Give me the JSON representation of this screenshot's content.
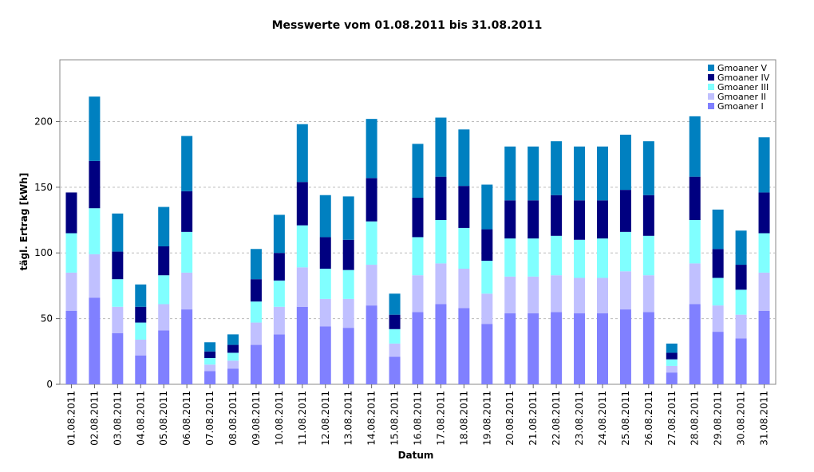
{
  "chart_data": {
    "type": "stacked_bar",
    "title": "Messwerte vom 01.08.2011 bis 31.08.2011",
    "x_label": "Datum",
    "y_label": "tägl. Ertrag [kWh]",
    "categories": [
      "01.08.2011",
      "02.08.2011",
      "03.08.2011",
      "04.08.2011",
      "05.08.2011",
      "06.08.2011",
      "07.08.2011",
      "08.08.2011",
      "09.08.2011",
      "10.08.2011",
      "11.08.2011",
      "12.08.2011",
      "13.08.2011",
      "14.08.2011",
      "15.08.2011",
      "16.08.2011",
      "17.08.2011",
      "18.08.2011",
      "19.08.2011",
      "20.08.2011",
      "21.08.2011",
      "22.08.2011",
      "23.08.2011",
      "24.08.2011",
      "25.08.2011",
      "26.08.2011",
      "27.08.2011",
      "28.08.2011",
      "29.08.2011",
      "30.08.2011",
      "31.08.2011"
    ],
    "series": [
      {
        "name": "Gmoaner I",
        "color": "#8080ff",
        "values": [
          56,
          66,
          39,
          22,
          41,
          57,
          10,
          12,
          30,
          38,
          59,
          44,
          43,
          60,
          21,
          55,
          61,
          58,
          46,
          54,
          54,
          55,
          54,
          54,
          57,
          55,
          9,
          61,
          40,
          35,
          56
        ]
      },
      {
        "name": "Gmoaner II",
        "color": "#c0c0ff",
        "values": [
          29,
          33,
          20,
          12,
          20,
          28,
          5,
          6,
          17,
          21,
          30,
          21,
          22,
          31,
          10,
          28,
          31,
          30,
          23,
          28,
          28,
          28,
          27,
          27,
          29,
          28,
          5,
          31,
          20,
          18,
          29
        ]
      },
      {
        "name": "Gmoaner III",
        "color": "#80ffff",
        "values": [
          30,
          35,
          21,
          13,
          22,
          31,
          5,
          6,
          16,
          20,
          32,
          23,
          22,
          33,
          11,
          29,
          33,
          31,
          25,
          29,
          29,
          30,
          29,
          30,
          30,
          30,
          5,
          33,
          21,
          19,
          30
        ]
      },
      {
        "name": "Gmoaner IV",
        "color": "#000080",
        "values": [
          31,
          36,
          21,
          12,
          22,
          31,
          5,
          6,
          17,
          21,
          33,
          24,
          23,
          33,
          11,
          30,
          33,
          32,
          24,
          29,
          29,
          31,
          30,
          29,
          32,
          31,
          5,
          33,
          22,
          19,
          31
        ]
      },
      {
        "name": "Gmoaner V",
        "color": "#0080c0",
        "values": [
          0,
          49,
          29,
          17,
          30,
          42,
          7,
          8,
          23,
          29,
          44,
          32,
          33,
          45,
          16,
          41,
          45,
          43,
          34,
          41,
          41,
          41,
          41,
          41,
          42,
          41,
          7,
          46,
          30,
          26,
          42
        ]
      }
    ],
    "ylim": [
      0,
      247
    ],
    "yticks": [
      0,
      50,
      100,
      150,
      200
    ],
    "grid": true,
    "legend": "top-right"
  }
}
